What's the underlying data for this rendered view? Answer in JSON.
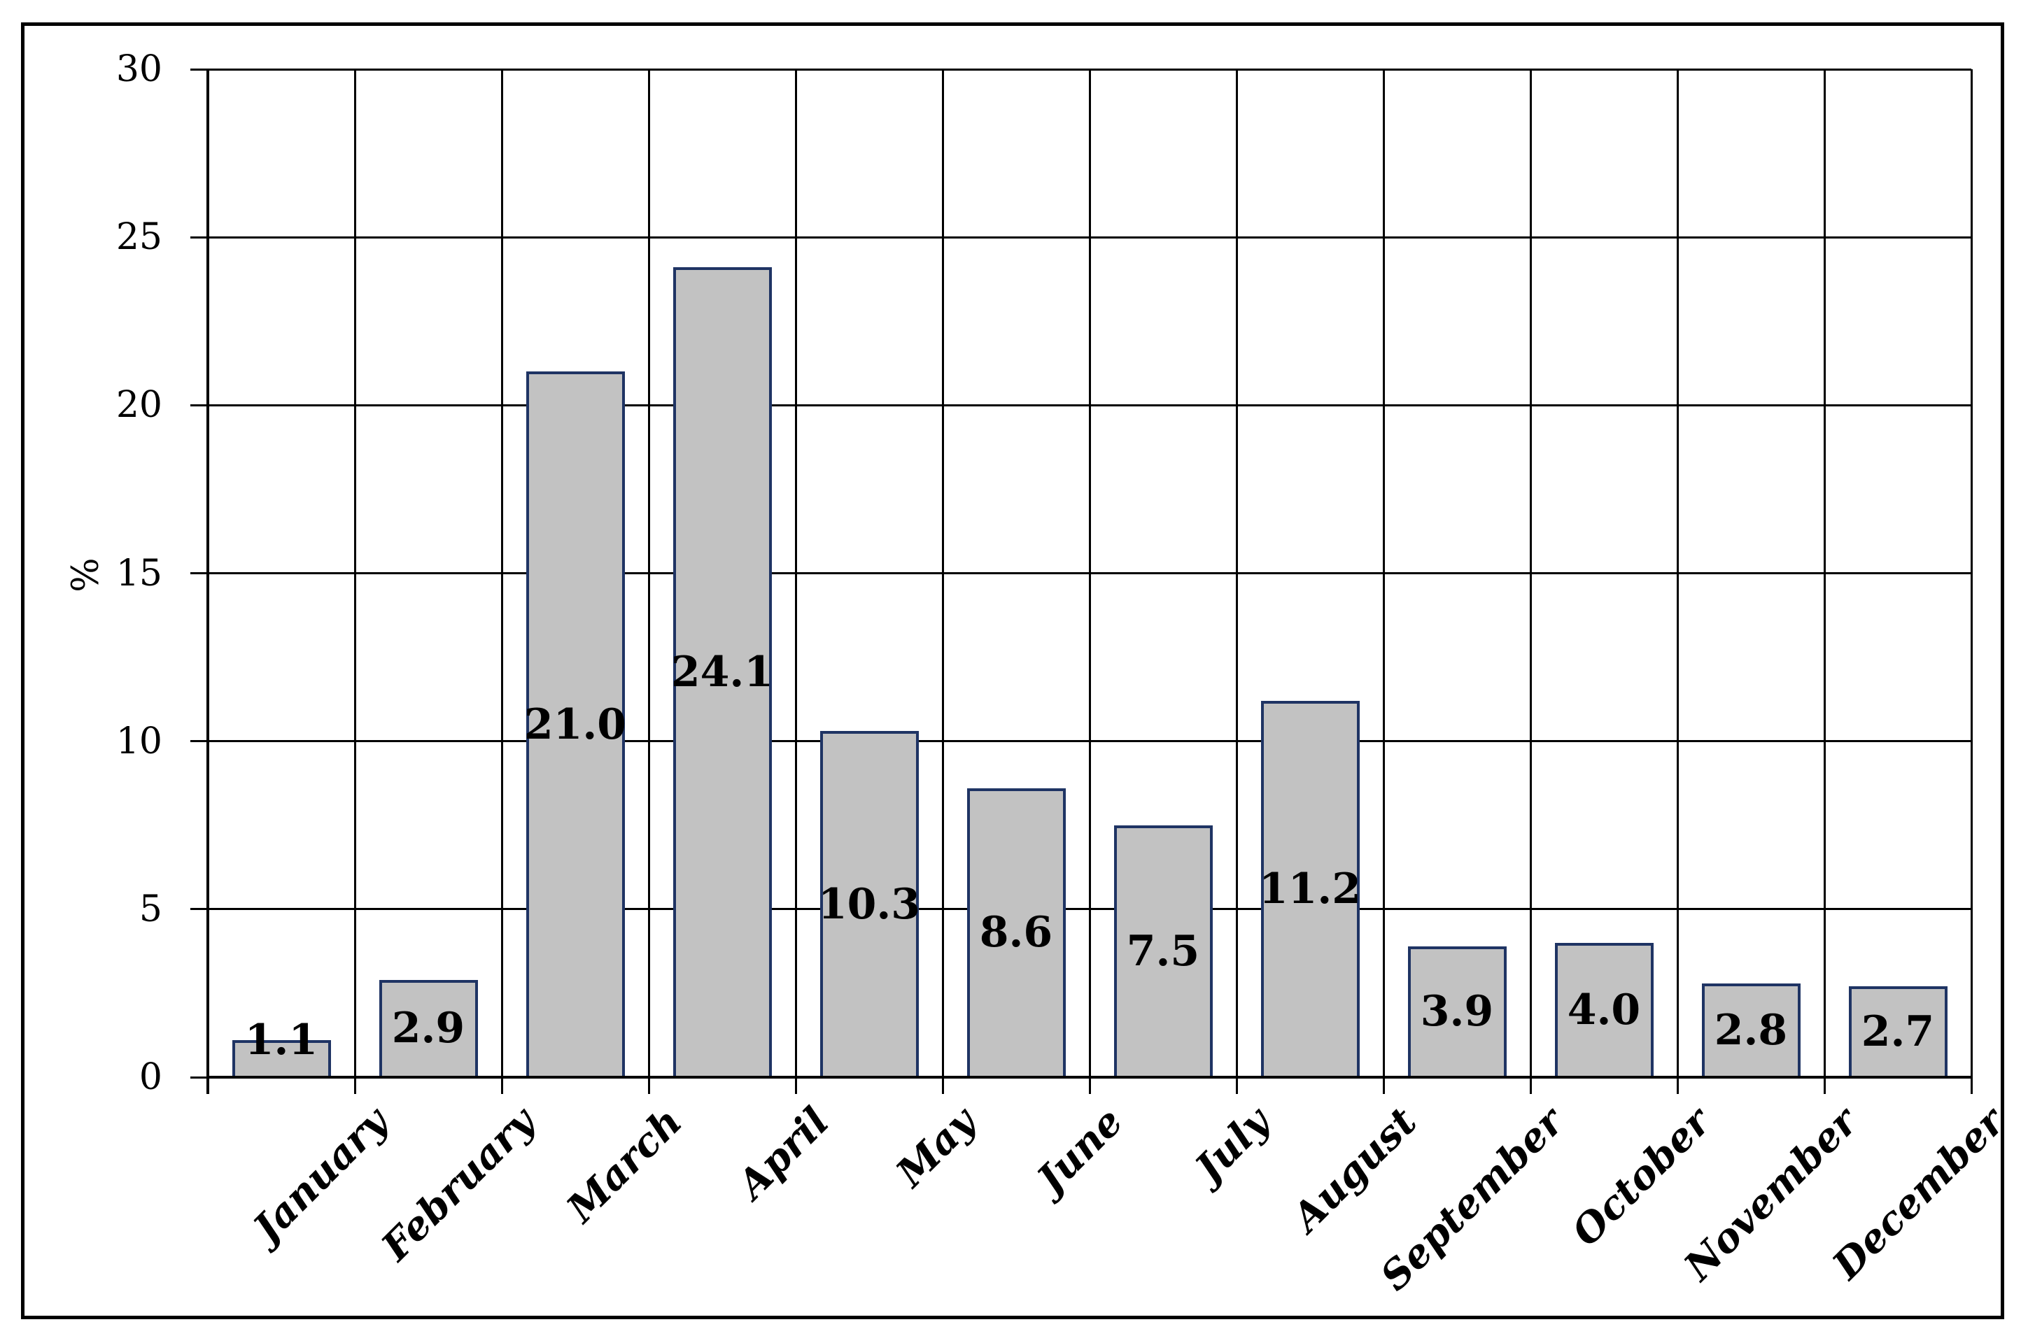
{
  "chart_data": {
    "type": "bar",
    "title": "",
    "categories": [
      "January",
      "February",
      "March",
      "April",
      "May",
      "June",
      "July",
      "August",
      "September",
      "October",
      "November",
      "December"
    ],
    "values": [
      1.1,
      2.9,
      21.0,
      24.1,
      10.3,
      8.6,
      7.5,
      11.2,
      3.9,
      4.0,
      2.8,
      2.7
    ],
    "value_labels": [
      "1.1",
      "2.9",
      "21.0",
      "24.1",
      "10.3",
      "8.6",
      "7.5",
      "11.2",
      "3.9",
      "4.0",
      "2.8",
      "2.7"
    ],
    "xlabel": "",
    "ylabel": "%",
    "ylim": [
      0,
      30
    ],
    "ytick_step": 5,
    "ytick_labels": [
      "0",
      "5",
      "10",
      "15",
      "20",
      "25",
      "30"
    ],
    "grid": true,
    "legend": false,
    "bar_label_position": "center",
    "colors": {
      "bar_fill": "#c2c2c2",
      "bar_border": "#1f3464",
      "gridline": "#000000",
      "axis": "#000000",
      "frame": "#000000",
      "text": "#000000",
      "background": "#ffffff"
    }
  }
}
